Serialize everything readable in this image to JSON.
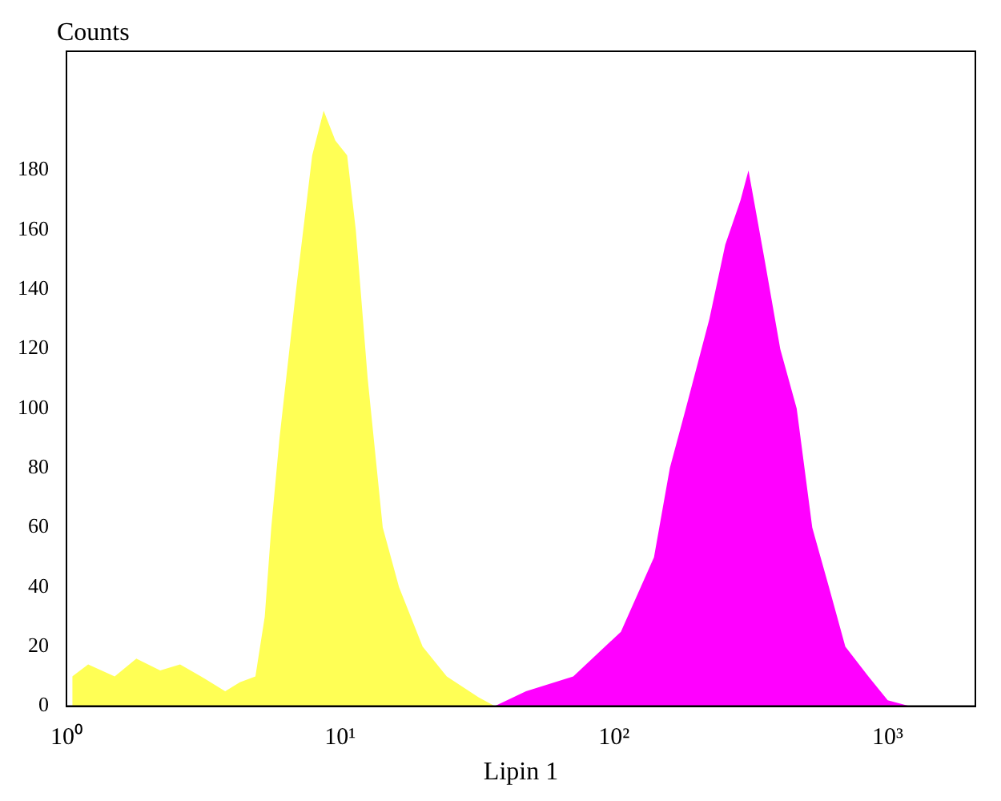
{
  "chart_data": {
    "type": "area",
    "xlabel": "Lipin 1",
    "ylabel": "Counts",
    "log": "x",
    "grid": false,
    "legend": false,
    "xlim": [
      1,
      2090
    ],
    "xticks": [
      {
        "value": 1,
        "label": "10⁰"
      },
      {
        "value": 10,
        "label": "10¹"
      },
      {
        "value": 100,
        "label": "10²"
      },
      {
        "value": 1000,
        "label": "10³"
      }
    ],
    "ylim": [
      0,
      220
    ],
    "yticks": [
      0,
      20,
      40,
      60,
      80,
      100,
      120,
      140,
      160,
      180
    ],
    "series": [
      {
        "color": "#ffff55",
        "x": [
          1.05,
          1.2,
          1.5,
          1.8,
          2.2,
          2.6,
          3.1,
          3.8,
          4.3,
          4.9,
          5.3,
          5.6,
          6,
          6.9,
          7.9,
          8.7,
          9.6,
          10.6,
          11.4,
          12.6,
          14.3,
          16.4,
          20,
          24.5,
          32,
          36.7
        ],
        "values": [
          10,
          14,
          10,
          16,
          12,
          14,
          10,
          5,
          8,
          10,
          30,
          60,
          90,
          140,
          185,
          200,
          190,
          185,
          160,
          110,
          60,
          40,
          20,
          10,
          3,
          0
        ]
      },
      {
        "color": "#ff00ff",
        "x": [
          36.7,
          47.7,
          71,
          106,
          140,
          160,
          183,
          223,
          255,
          290,
          310,
          355,
          405,
          465,
          530,
          610,
          700,
          850,
          1000,
          1200
        ],
        "values": [
          0,
          5,
          10,
          25,
          50,
          80,
          100,
          130,
          155,
          170,
          180,
          150,
          120,
          100,
          60,
          40,
          20,
          10,
          2,
          0
        ]
      }
    ]
  }
}
